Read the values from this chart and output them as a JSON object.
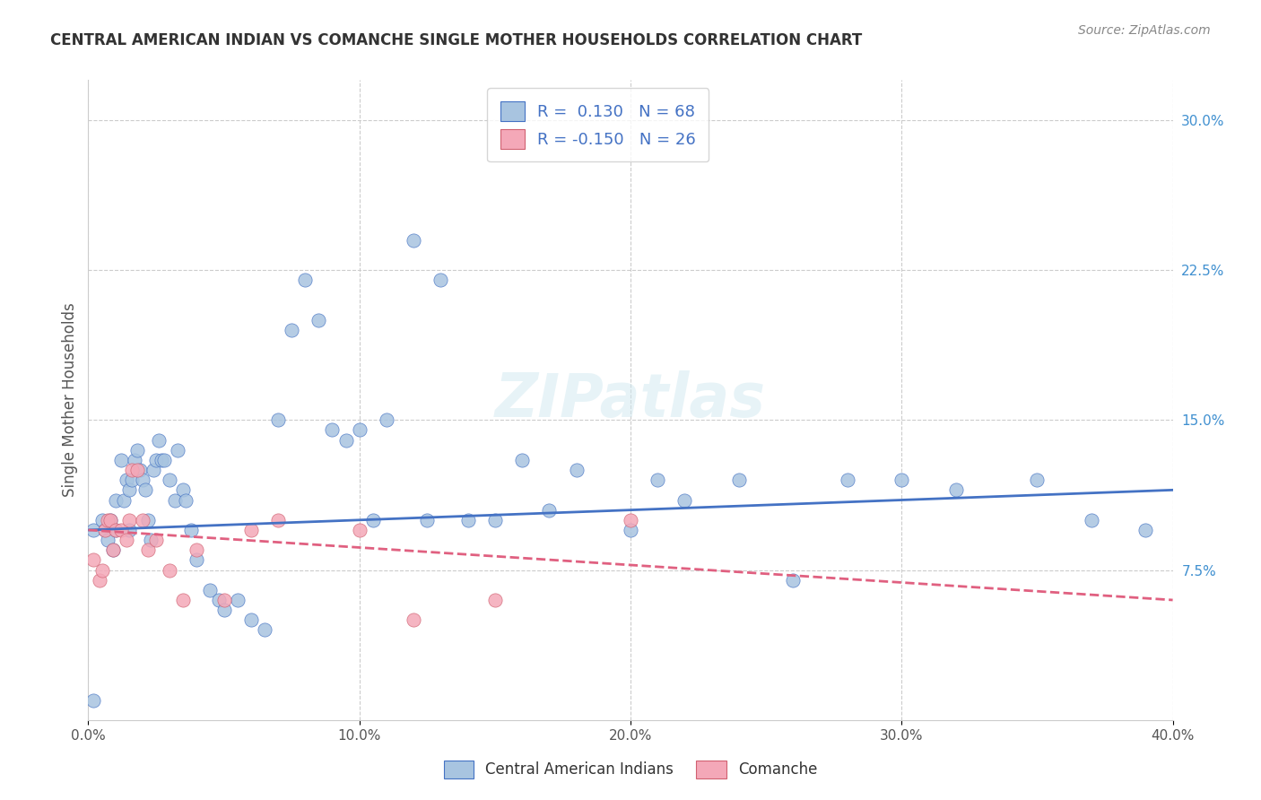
{
  "title": "CENTRAL AMERICAN INDIAN VS COMANCHE SINGLE MOTHER HOUSEHOLDS CORRELATION CHART",
  "source": "Source: ZipAtlas.com",
  "xlabel": "",
  "ylabel": "Single Mother Households",
  "xlim": [
    0.0,
    0.4
  ],
  "ylim": [
    0.0,
    0.32
  ],
  "xticks": [
    0.0,
    0.1,
    0.2,
    0.3,
    0.4
  ],
  "xtick_labels": [
    "0.0%",
    "10.0%",
    "20.0%",
    "30.0%",
    "40.0%"
  ],
  "yticks_right": [
    0.075,
    0.15,
    0.225,
    0.3
  ],
  "ytick_labels_right": [
    "7.5%",
    "15.0%",
    "22.5%",
    "30.0%"
  ],
  "legend_r1": "R =  0.130   N = 68",
  "legend_r2": "R = -0.150   N = 26",
  "color_blue": "#a8c4e0",
  "color_pink": "#f4a8b8",
  "line_color_blue": "#4472c4",
  "line_color_pink": "#e06080",
  "watermark": "ZIPatlas",
  "blue_scatter_x": [
    0.002,
    0.005,
    0.006,
    0.007,
    0.008,
    0.009,
    0.01,
    0.01,
    0.012,
    0.013,
    0.014,
    0.015,
    0.015,
    0.016,
    0.017,
    0.018,
    0.019,
    0.02,
    0.021,
    0.022,
    0.023,
    0.024,
    0.025,
    0.026,
    0.027,
    0.028,
    0.03,
    0.032,
    0.033,
    0.035,
    0.036,
    0.038,
    0.04,
    0.045,
    0.048,
    0.05,
    0.055,
    0.06,
    0.065,
    0.07,
    0.075,
    0.08,
    0.085,
    0.09,
    0.095,
    0.1,
    0.105,
    0.11,
    0.12,
    0.125,
    0.13,
    0.14,
    0.15,
    0.16,
    0.17,
    0.18,
    0.2,
    0.21,
    0.22,
    0.24,
    0.26,
    0.28,
    0.3,
    0.32,
    0.35,
    0.37,
    0.39,
    0.002
  ],
  "blue_scatter_y": [
    0.095,
    0.1,
    0.095,
    0.09,
    0.1,
    0.085,
    0.11,
    0.095,
    0.13,
    0.11,
    0.12,
    0.115,
    0.095,
    0.12,
    0.13,
    0.135,
    0.125,
    0.12,
    0.115,
    0.1,
    0.09,
    0.125,
    0.13,
    0.14,
    0.13,
    0.13,
    0.12,
    0.11,
    0.135,
    0.115,
    0.11,
    0.095,
    0.08,
    0.065,
    0.06,
    0.055,
    0.06,
    0.05,
    0.045,
    0.15,
    0.195,
    0.22,
    0.2,
    0.145,
    0.14,
    0.145,
    0.1,
    0.15,
    0.24,
    0.1,
    0.22,
    0.1,
    0.1,
    0.13,
    0.105,
    0.125,
    0.095,
    0.12,
    0.11,
    0.12,
    0.07,
    0.12,
    0.12,
    0.115,
    0.12,
    0.1,
    0.095,
    0.01
  ],
  "pink_scatter_x": [
    0.002,
    0.004,
    0.005,
    0.006,
    0.007,
    0.008,
    0.009,
    0.01,
    0.012,
    0.014,
    0.015,
    0.016,
    0.018,
    0.02,
    0.022,
    0.025,
    0.03,
    0.035,
    0.04,
    0.05,
    0.06,
    0.07,
    0.1,
    0.12,
    0.15,
    0.2
  ],
  "pink_scatter_y": [
    0.08,
    0.07,
    0.075,
    0.095,
    0.1,
    0.1,
    0.085,
    0.095,
    0.095,
    0.09,
    0.1,
    0.125,
    0.125,
    0.1,
    0.085,
    0.09,
    0.075,
    0.06,
    0.085,
    0.06,
    0.095,
    0.1,
    0.095,
    0.05,
    0.06,
    0.1
  ],
  "blue_line_x": [
    0.0,
    0.4
  ],
  "blue_line_y": [
    0.095,
    0.115
  ],
  "pink_line_x": [
    0.0,
    0.4
  ],
  "pink_line_y": [
    0.095,
    0.06
  ]
}
